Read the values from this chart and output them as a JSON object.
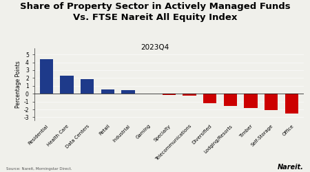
{
  "title": "Share of Property Sector in Actively Managed Funds\nVs. FTSE Nareit All Equity Index",
  "subtitle": "2023Q4",
  "categories": [
    "Residential",
    "Health Care",
    "Data Centers",
    "Retail",
    "Industrial",
    "Gaming",
    "Specialty",
    "Telecommunications",
    "Diversified",
    "Lodging/Resorts",
    "Timber",
    "Self-Storage",
    "Office"
  ],
  "values": [
    4.4,
    2.3,
    1.85,
    0.5,
    0.45,
    0.05,
    -0.18,
    -0.25,
    -1.2,
    -1.55,
    -1.85,
    -2.1,
    -2.5
  ],
  "colors": [
    "#1e3a8a",
    "#1e3a8a",
    "#1e3a8a",
    "#1e3a8a",
    "#1e3a8a",
    "#1e3a8a",
    "#cc0000",
    "#cc0000",
    "#cc0000",
    "#cc0000",
    "#cc0000",
    "#cc0000",
    "#cc0000"
  ],
  "ylabel": "Percentage Points",
  "ylim": [
    -3.4,
    5.8
  ],
  "yticks": [
    -3,
    -2,
    -1,
    0,
    1,
    2,
    3,
    4,
    5
  ],
  "source": "Source: Nareit, Morningstar Direct.",
  "logo": "Nareit.",
  "bg_color": "#f0f0eb",
  "title_fontsize": 9.5,
  "subtitle_fontsize": 7.5
}
